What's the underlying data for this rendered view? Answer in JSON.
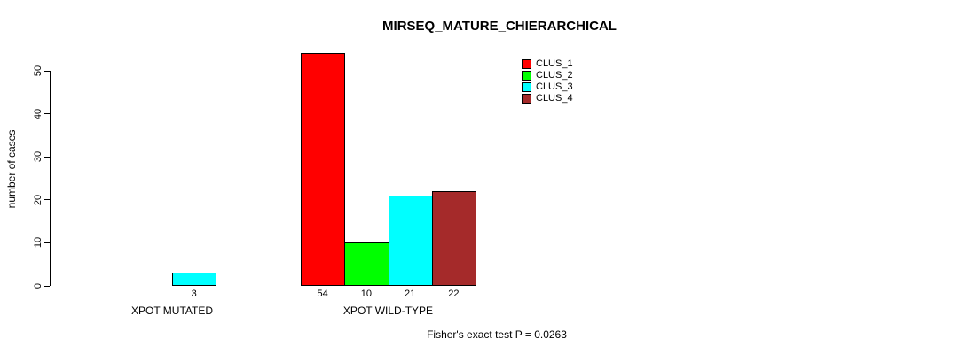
{
  "chart_data": {
    "type": "bar",
    "title": "MIRSEQ_MATURE_CHIERARCHICAL",
    "ylabel": "number of cases",
    "note": "Fisher's exact test P = 0.0263",
    "ylim": [
      0,
      50
    ],
    "yticks": [
      0,
      10,
      20,
      30,
      40,
      50
    ],
    "grid": false,
    "legend_position": "top-right-inside",
    "categories": [
      "XPOT MUTATED",
      "XPOT WILD-TYPE"
    ],
    "series": [
      {
        "name": "CLUS_1",
        "color": "#FF0000",
        "values": [
          0,
          54
        ]
      },
      {
        "name": "CLUS_2",
        "color": "#00FF00",
        "values": [
          0,
          10
        ]
      },
      {
        "name": "CLUS_3",
        "color": "#00FFFF",
        "values": [
          3,
          21
        ]
      },
      {
        "name": "CLUS_4",
        "color": "#A52A2A",
        "values": [
          0,
          22
        ]
      }
    ],
    "bar_value_labels": [
      [
        "",
        "",
        "3",
        ""
      ],
      [
        "54",
        "10",
        "21",
        "22"
      ]
    ]
  }
}
